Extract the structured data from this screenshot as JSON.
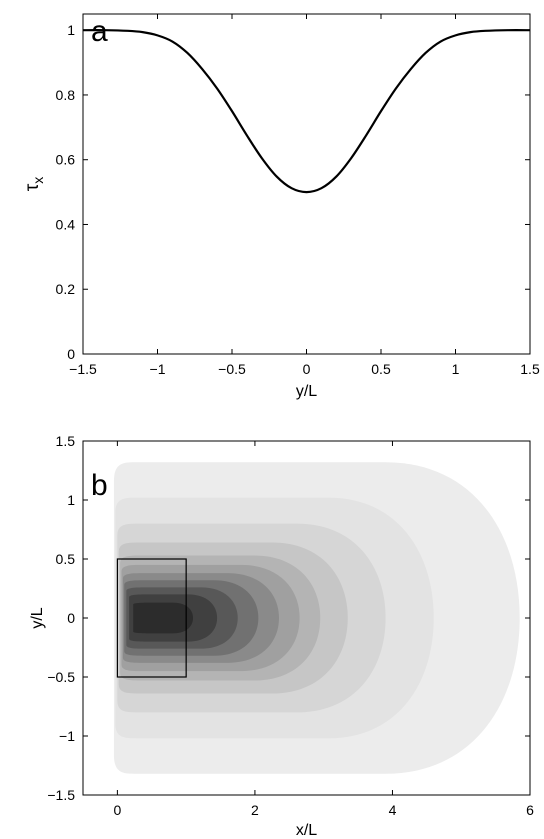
{
  "chart_data": [
    {
      "type": "line",
      "panel_label": "a",
      "xlabel": "y/L",
      "ylabel_main": "τ",
      "ylabel_sub": "x",
      "xlim": [
        -1.5,
        1.5
      ],
      "ylim": [
        0,
        1.05
      ],
      "xticks": [
        -1.5,
        -1,
        -0.5,
        0,
        0.5,
        1,
        1.5
      ],
      "xtick_labels": [
        "−1.5",
        "−1",
        "−0.5",
        "0",
        "0.5",
        "1",
        "1.5"
      ],
      "yticks": [
        0,
        0.2,
        0.4,
        0.6,
        0.8,
        1
      ],
      "ytick_labels": [
        "0",
        "0.2",
        "0.4",
        "0.6",
        "0.8",
        "1"
      ],
      "grid": false,
      "series": [
        {
          "x": [
            -1.5,
            -1.35,
            -1.2,
            -1.1,
            -1.0,
            -0.9,
            -0.8,
            -0.7,
            -0.6,
            -0.5,
            -0.4,
            -0.3,
            -0.2,
            -0.1,
            0,
            0.1,
            0.2,
            0.3,
            0.4,
            0.5,
            0.6,
            0.7,
            0.8,
            0.9,
            1.0,
            1.1,
            1.2,
            1.35,
            1.5
          ],
          "y": [
            1.0,
            1.0,
            0.998,
            0.994,
            0.984,
            0.965,
            0.93,
            0.88,
            0.82,
            0.75,
            0.675,
            0.605,
            0.548,
            0.512,
            0.5,
            0.512,
            0.548,
            0.605,
            0.675,
            0.75,
            0.82,
            0.88,
            0.93,
            0.965,
            0.984,
            0.994,
            0.998,
            1.0,
            1.0
          ],
          "color": "#000000"
        }
      ]
    },
    {
      "type": "heatmap",
      "panel_label": "b",
      "xlabel": "x/L",
      "ylabel": "y/L",
      "xlim": [
        -0.5,
        6
      ],
      "ylim": [
        -1.5,
        1.5
      ],
      "xticks": [
        0,
        2,
        4,
        6
      ],
      "xtick_labels": [
        "0",
        "2",
        "4",
        "6"
      ],
      "yticks": [
        -1.5,
        -1,
        -0.5,
        0,
        0.5,
        1,
        1.5
      ],
      "ytick_labels": [
        "−1.5",
        "−1",
        "−0.5",
        "0",
        "0.5",
        "1",
        "1.5"
      ],
      "grid": false,
      "colormap": "gray (white = low, black = high)",
      "forcing_box": {
        "x": [
          0,
          1
        ],
        "y": [
          -0.5,
          0.5
        ]
      },
      "contours": [
        {
          "level": 1,
          "xmin": -0.05,
          "xmax": 5.85,
          "yhalf": 1.32,
          "fill": "#ececec"
        },
        {
          "level": 2,
          "xmin": -0.03,
          "xmax": 4.6,
          "yhalf": 1.02,
          "fill": "#e3e3e3"
        },
        {
          "level": 3,
          "xmin": 0.0,
          "xmax": 3.9,
          "yhalf": 0.8,
          "fill": "#d6d6d6"
        },
        {
          "level": 4,
          "xmin": 0.02,
          "xmax": 3.35,
          "yhalf": 0.64,
          "fill": "#c6c6c6"
        },
        {
          "level": 5,
          "xmin": 0.04,
          "xmax": 2.95,
          "yhalf": 0.53,
          "fill": "#b4b4b4"
        },
        {
          "level": 6,
          "xmin": 0.06,
          "xmax": 2.65,
          "yhalf": 0.45,
          "fill": "#a0a0a0"
        },
        {
          "level": 7,
          "xmin": 0.08,
          "xmax": 2.35,
          "yhalf": 0.38,
          "fill": "#8a8a8a"
        },
        {
          "level": 8,
          "xmin": 0.1,
          "xmax": 2.05,
          "yhalf": 0.32,
          "fill": "#717171"
        },
        {
          "level": 9,
          "xmin": 0.13,
          "xmax": 1.75,
          "yhalf": 0.26,
          "fill": "#585858"
        },
        {
          "level": 10,
          "xmin": 0.17,
          "xmax": 1.45,
          "yhalf": 0.2,
          "fill": "#404040"
        },
        {
          "level": 11,
          "xmin": 0.23,
          "xmax": 1.1,
          "yhalf": 0.13,
          "fill": "#2c2c2c"
        }
      ]
    }
  ]
}
